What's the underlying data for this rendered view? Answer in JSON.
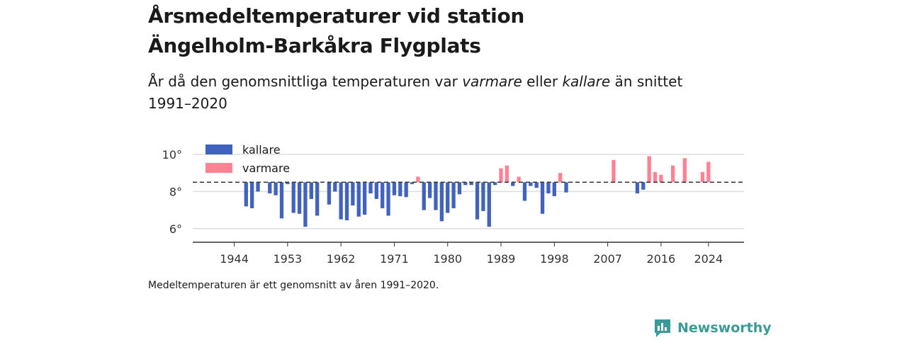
{
  "title_line1": "Årsmedeltemperaturer vid station",
  "title_line2": "Ängelholm-Barkåkra Flygplats",
  "subtitle": {
    "part1": "År då den genomsnittliga temperaturen var ",
    "warm_word": "varmare",
    "part2": " eller ",
    "cold_word": "kallare",
    "part3": " än snittet",
    "line2": "1991–2020"
  },
  "footnote": "Medeltemperaturen är ett genomsnitt av åren 1991–2020.",
  "brand": "Newsworthy",
  "chart_data": {
    "type": "bar",
    "baseline": 8.5,
    "baseline_style": "dashed",
    "ylim": [
      5.2,
      10.4
    ],
    "yticks": [
      6,
      8,
      10
    ],
    "ytick_labels": [
      "6°",
      "8°",
      "10°"
    ],
    "xlim": [
      1937,
      2030
    ],
    "xticks": [
      1944,
      1953,
      1962,
      1971,
      1980,
      1989,
      1998,
      2007,
      2016,
      2024
    ],
    "grid": true,
    "legend": {
      "position": "top-left",
      "entries": [
        {
          "label": "kallare",
          "color": "#4263bd"
        },
        {
          "label": "varmare",
          "color": "#ff8193"
        }
      ]
    },
    "colors": {
      "colder": "#4263bd",
      "warmer": "#ff8193",
      "grid": "#dddddd",
      "axis": "#333333"
    },
    "years": [
      1946,
      1947,
      1948,
      1950,
      1951,
      1952,
      1953,
      1954,
      1955,
      1956,
      1957,
      1958,
      1960,
      1961,
      1962,
      1963,
      1964,
      1965,
      1966,
      1967,
      1968,
      1969,
      1970,
      1971,
      1972,
      1973,
      1974,
      1975,
      1976,
      1977,
      1978,
      1979,
      1980,
      1981,
      1982,
      1983,
      1984,
      1985,
      1986,
      1987,
      1988,
      1989,
      1990,
      1991,
      1992,
      1993,
      1994,
      1995,
      1996,
      1997,
      1998,
      1999,
      2000,
      2001,
      2008,
      2012,
      2013,
      2014,
      2015,
      2016,
      2018,
      2020,
      2023,
      2024
    ],
    "values": [
      7.2,
      7.1,
      8.0,
      7.9,
      7.8,
      6.55,
      8.4,
      6.85,
      6.8,
      6.1,
      7.6,
      6.7,
      7.3,
      8.0,
      6.5,
      6.45,
      7.25,
      6.65,
      6.75,
      7.9,
      7.6,
      7.1,
      6.7,
      7.8,
      7.75,
      7.7,
      8.4,
      8.8,
      7.0,
      7.65,
      7.0,
      6.4,
      6.85,
      7.1,
      7.85,
      8.35,
      8.35,
      6.5,
      6.95,
      6.1,
      8.35,
      9.25,
      9.4,
      8.3,
      8.8,
      7.5,
      8.3,
      8.2,
      6.8,
      7.9,
      7.75,
      9.0,
      7.95,
      8.5,
      9.7,
      7.9,
      8.1,
      9.9,
      9.05,
      8.9,
      9.4,
      9.8,
      9.05,
      9.6
    ]
  }
}
